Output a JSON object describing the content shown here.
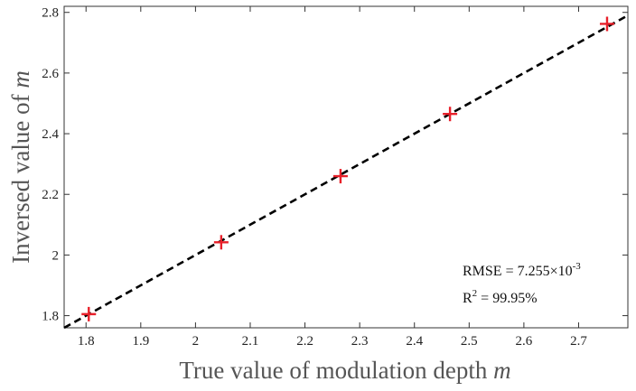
{
  "chart_data": {
    "type": "scatter",
    "xlabel_text": "True value of modulation depth",
    "xlabel_var": "m",
    "ylabel_text": "Inversed value of",
    "ylabel_var": "m",
    "xlim": [
      1.76,
      2.79
    ],
    "ylim": [
      1.76,
      2.82
    ],
    "xticks": [
      1.8,
      1.9,
      2,
      2.1,
      2.2,
      2.3,
      2.4,
      2.5,
      2.6,
      2.7
    ],
    "xtick_labels": [
      "1.8",
      "1.9",
      "2",
      "2.1",
      "2.2",
      "2.3",
      "2.4",
      "2.5",
      "2.6",
      "2.7"
    ],
    "yticks": [
      1.8,
      2.0,
      2.2,
      2.4,
      2.6,
      2.8
    ],
    "ytick_labels": [
      "1.8",
      "2",
      "2.2",
      "2.4",
      "2.6",
      "2.8"
    ],
    "points": [
      {
        "x": 1.805,
        "y": 1.805
      },
      {
        "x": 2.047,
        "y": 2.042
      },
      {
        "x": 2.265,
        "y": 2.26
      },
      {
        "x": 2.465,
        "y": 2.465
      },
      {
        "x": 2.752,
        "y": 2.762
      }
    ],
    "fit_line": {
      "x": [
        1.76,
        2.79
      ],
      "y": [
        1.76,
        2.79
      ],
      "style": "dashed",
      "color": "#000000"
    },
    "marker_color": "#e8202a",
    "grid": false,
    "annotations": {
      "rmse_prefix": "RMSE = 7.255×10",
      "rmse_exp": "-3",
      "r2_prefix": "R",
      "r2_sup": "2",
      "r2_suffix": " = 99.95%"
    }
  }
}
